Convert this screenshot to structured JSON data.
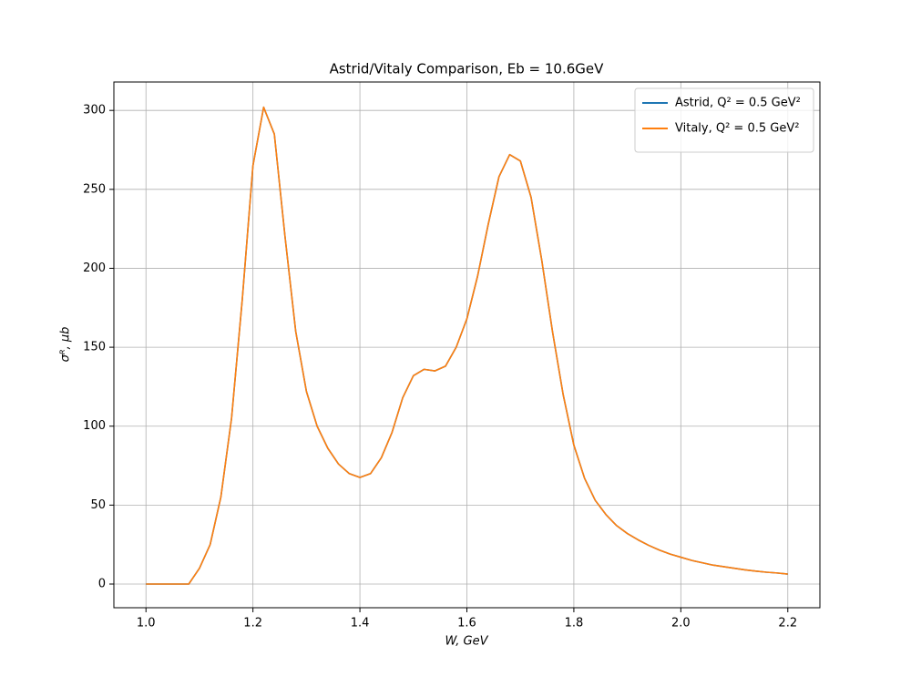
{
  "chart_data": {
    "type": "line",
    "title": "Astrid/Vitaly Comparison, Eb = 10.6GeV",
    "x_label": "W, GeV",
    "y_label": "σᴿ, μb",
    "x": [
      1.0,
      1.02,
      1.04,
      1.06,
      1.08,
      1.1,
      1.12,
      1.14,
      1.16,
      1.18,
      1.2,
      1.22,
      1.24,
      1.26,
      1.28,
      1.3,
      1.32,
      1.34,
      1.36,
      1.38,
      1.4,
      1.42,
      1.44,
      1.46,
      1.48,
      1.5,
      1.52,
      1.54,
      1.56,
      1.58,
      1.6,
      1.62,
      1.64,
      1.66,
      1.68,
      1.7,
      1.72,
      1.74,
      1.76,
      1.78,
      1.8,
      1.82,
      1.84,
      1.86,
      1.88,
      1.9,
      1.92,
      1.94,
      1.96,
      1.98,
      2.0,
      2.02,
      2.04,
      2.06,
      2.08,
      2.1,
      2.12,
      2.14,
      2.16,
      2.18,
      2.2
    ],
    "series": [
      {
        "name": "Astrid, Q² = 0.5 GeV²",
        "color": "#1f77b4",
        "values": [
          0,
          0,
          0,
          0,
          0,
          10,
          25,
          55,
          105,
          180,
          265,
          302,
          285,
          220,
          160,
          122,
          100,
          86,
          76,
          70,
          67.5,
          70,
          80,
          96,
          118,
          132,
          136,
          135,
          138,
          150,
          168,
          195,
          228,
          258,
          272,
          268,
          245,
          205,
          160,
          120,
          88,
          67,
          53,
          44,
          37,
          32,
          28,
          24.5,
          21.5,
          19,
          17,
          15,
          13.5,
          12,
          11,
          10,
          9,
          8.2,
          7.5,
          7,
          6.3
        ]
      },
      {
        "name": "Vitaly, Q² = 0.5 GeV²",
        "color": "#ff7f0e",
        "values": [
          0,
          0,
          0,
          0,
          0,
          10,
          25,
          55,
          105,
          180,
          265,
          302,
          285,
          220,
          160,
          122,
          100,
          86,
          76,
          70,
          67.5,
          70,
          80,
          96,
          118,
          132,
          136,
          135,
          138,
          150,
          168,
          195,
          228,
          258,
          272,
          268,
          245,
          205,
          160,
          120,
          88,
          67,
          53,
          44,
          37,
          32,
          28,
          24.5,
          21.5,
          19,
          17,
          15,
          13.5,
          12,
          11,
          10,
          9,
          8.2,
          7.5,
          7,
          6.3
        ]
      }
    ],
    "xlim": [
      0.94,
      2.26
    ],
    "ylim": [
      -15,
      318
    ],
    "xticks": [
      {
        "value": 1,
        "label": "1.0"
      },
      1.2,
      1.4,
      1.6,
      1.8,
      {
        "value": 2,
        "label": "2.0"
      },
      2.2
    ],
    "yticks": [
      0,
      50,
      100,
      150,
      200,
      250,
      300
    ],
    "grid": true,
    "legend": "upper right"
  }
}
